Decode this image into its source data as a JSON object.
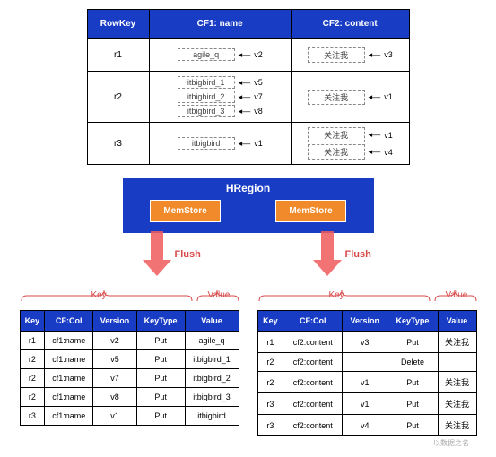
{
  "colors": {
    "header_bg": "#193cc5",
    "header_fg": "#ffffff",
    "memstore_bg": "#f08a2a",
    "arrow_color": "#f05a5a",
    "brace_color": "#d84a4a",
    "border": "#000000",
    "dashed": "#888888"
  },
  "top_table": {
    "headers": [
      "RowKey",
      "CF1: name",
      "CF2: content"
    ],
    "rows": [
      {
        "rowkey": "r1",
        "cf1": [
          {
            "val": "agile_q",
            "ver": "v2"
          }
        ],
        "cf2": [
          {
            "val": "关注我",
            "ver": "v3"
          }
        ]
      },
      {
        "rowkey": "r2",
        "cf1": [
          {
            "val": "itbigbird_1",
            "ver": "v5"
          },
          {
            "val": "itbigbird_2",
            "ver": "v7"
          },
          {
            "val": "itbigbird_3",
            "ver": "v8"
          }
        ],
        "cf2": [
          {
            "val": "关注我",
            "ver": "v1"
          }
        ]
      },
      {
        "rowkey": "r3",
        "cf1": [
          {
            "val": "itbigbird",
            "ver": "v1"
          }
        ],
        "cf2": [
          {
            "val": "关注我",
            "ver": "v1"
          },
          {
            "val": "关注我",
            "ver": "v4"
          }
        ]
      }
    ]
  },
  "hregion": {
    "title": "HRegion",
    "stores": [
      "MemStore",
      "MemStore"
    ]
  },
  "flush_label": "Flush",
  "result_headers": [
    "Key",
    "CF:Col",
    "Version",
    "KeyType",
    "Value"
  ],
  "brace_labels": {
    "key": "Key",
    "value": "Value"
  },
  "left_table": {
    "rows": [
      [
        "r1",
        "cf1:name",
        "v2",
        "Put",
        "agile_q"
      ],
      [
        "r2",
        "cf1:name",
        "v5",
        "Put",
        "itbigbird_1"
      ],
      [
        "r2",
        "cf1:name",
        "v7",
        "Put",
        "itbigbird_2"
      ],
      [
        "r2",
        "cf1:name",
        "v8",
        "Put",
        "itbigbird_3"
      ],
      [
        "r3",
        "cf1:name",
        "v1",
        "Put",
        "itbigbird"
      ]
    ]
  },
  "right_table": {
    "rows": [
      [
        "r1",
        "cf2:content",
        "v3",
        "Put",
        "关注我"
      ],
      [
        "r2",
        "cf2:content",
        "",
        "Delete",
        ""
      ],
      [
        "r2",
        "cf2:content",
        "v1",
        "Put",
        "关注我"
      ],
      [
        "r3",
        "cf2:content",
        "v1",
        "Put",
        "关注我"
      ],
      [
        "r3",
        "cf2:content",
        "v4",
        "Put",
        "关注我"
      ]
    ]
  },
  "footer": "以数据之名"
}
